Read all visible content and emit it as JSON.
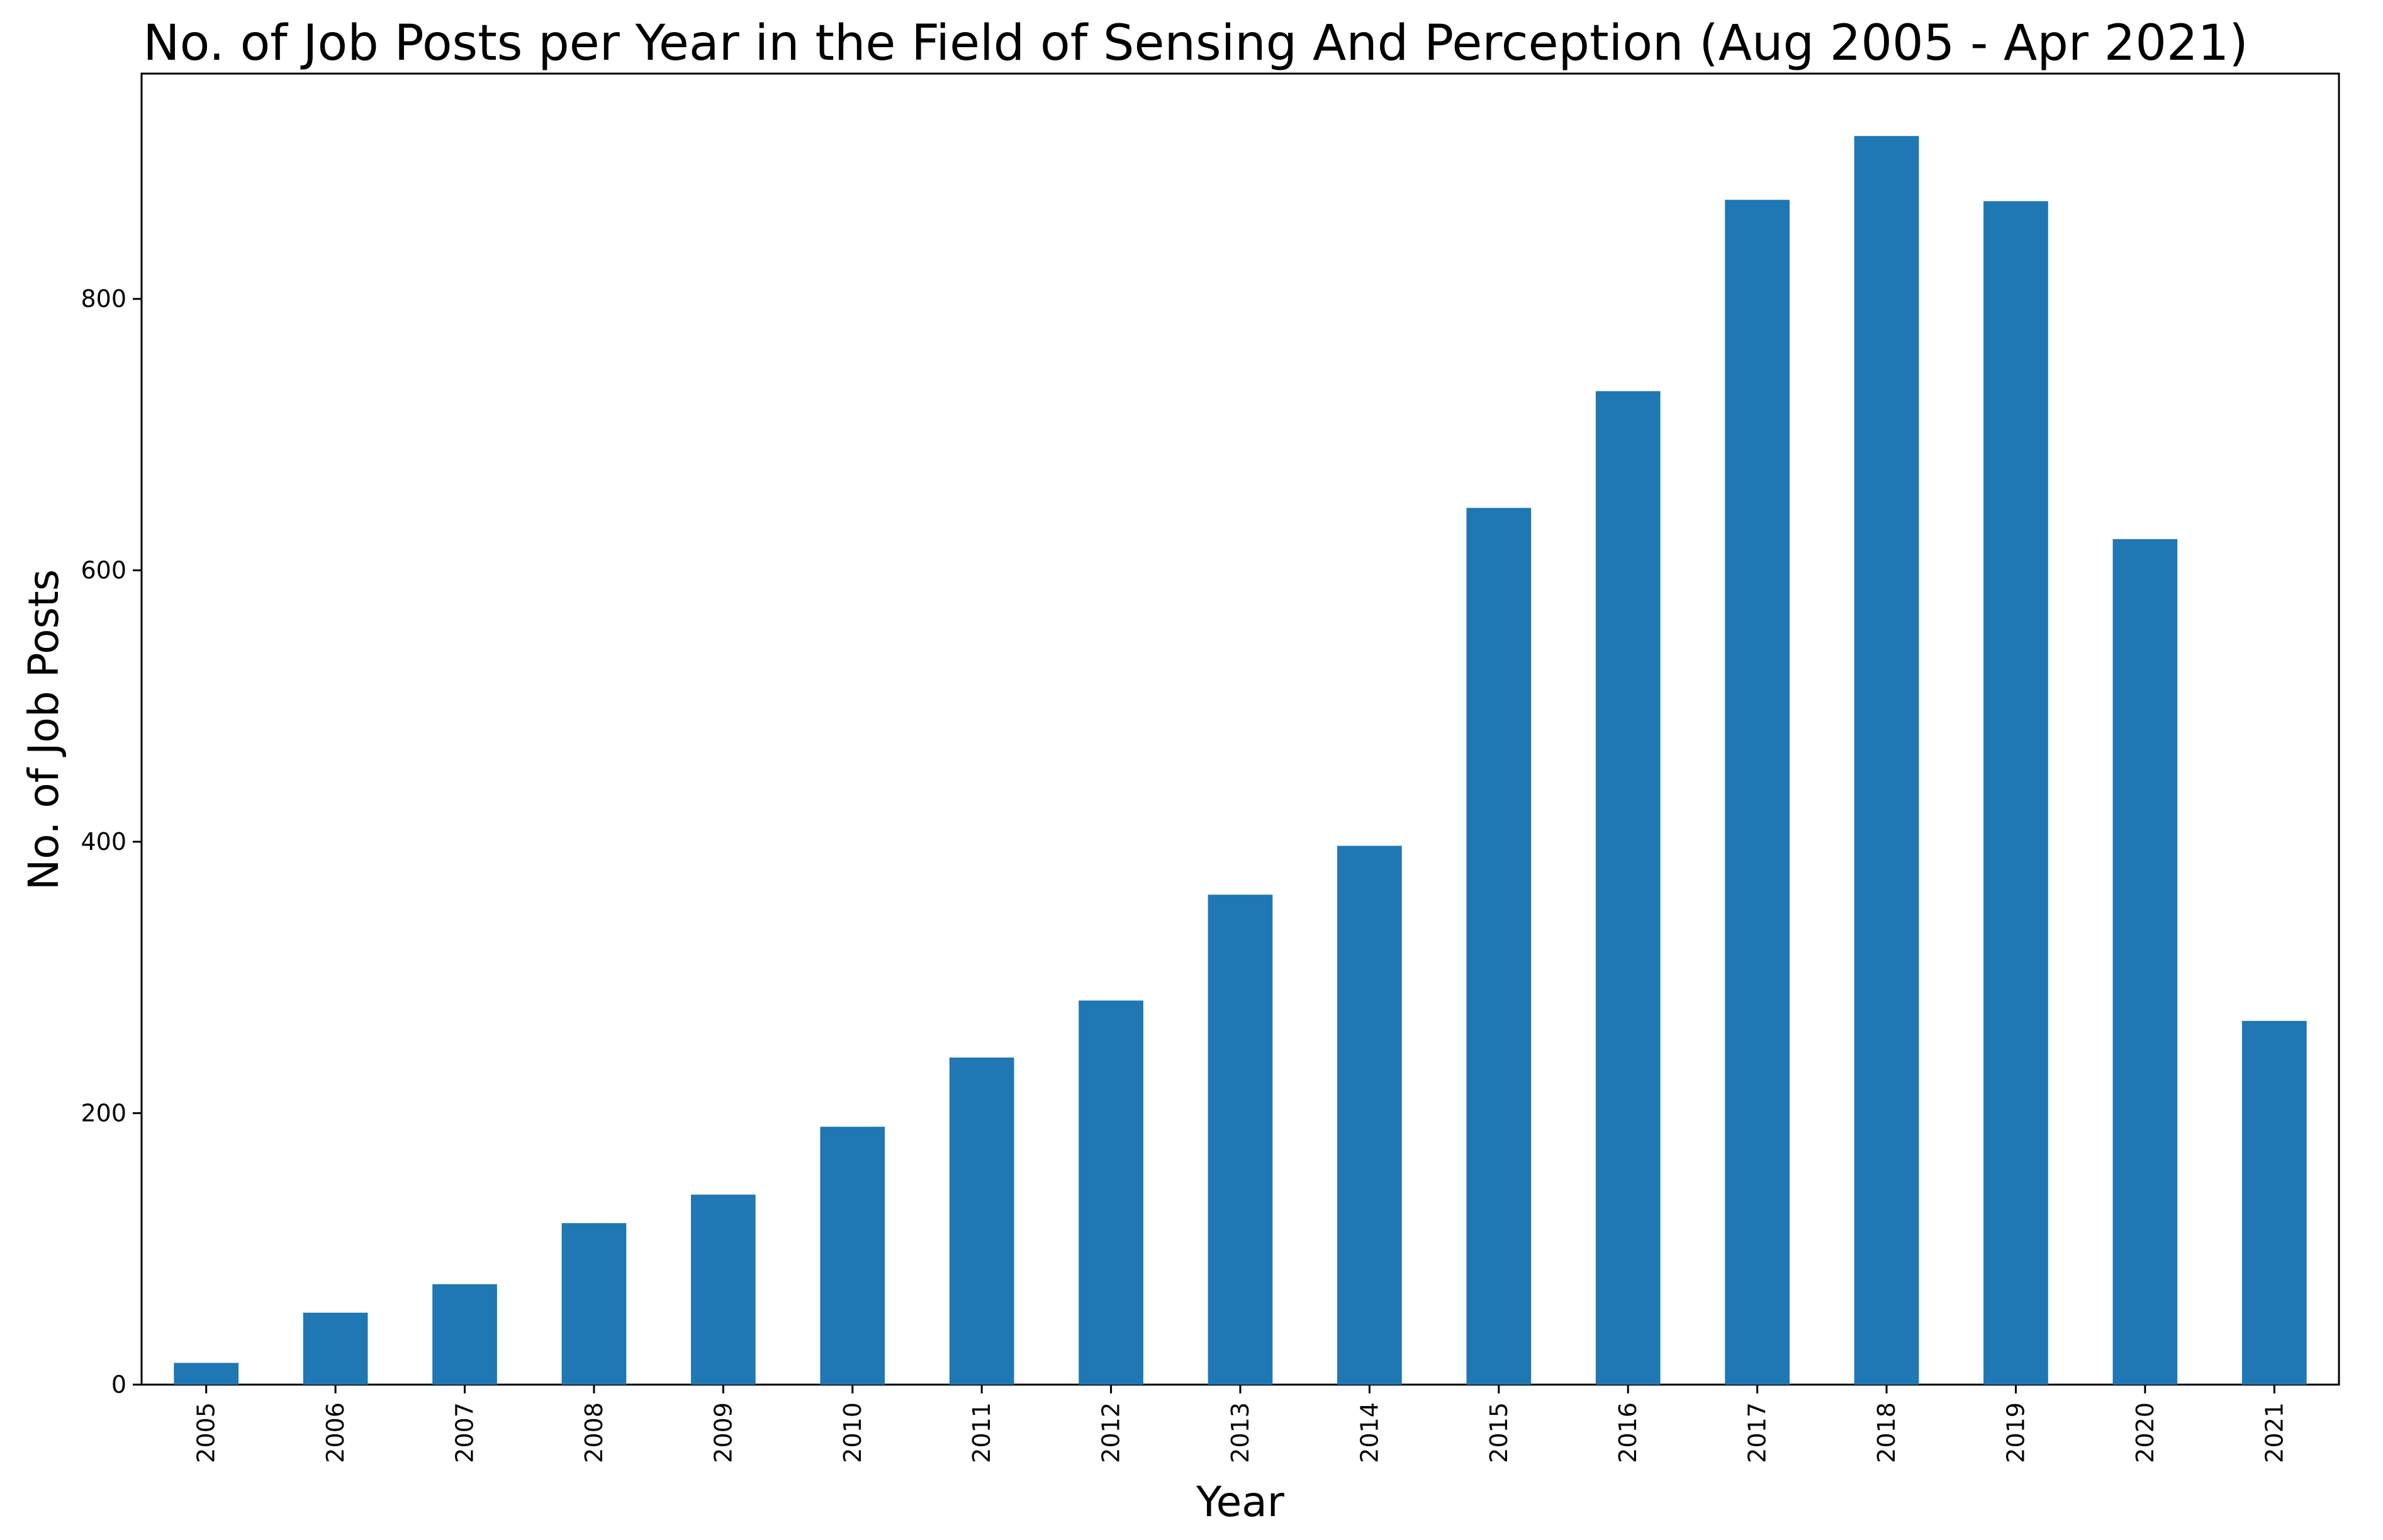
{
  "chart_data": {
    "type": "bar",
    "title": "No. of Job Posts per Year in the Field of Sensing And Perception (Aug 2005 - Apr 2021)",
    "xlabel": "Year",
    "ylabel": "No. of Job Posts",
    "categories": [
      "2005",
      "2006",
      "2007",
      "2008",
      "2009",
      "2010",
      "2011",
      "2012",
      "2013",
      "2014",
      "2015",
      "2016",
      "2017",
      "2018",
      "2019",
      "2020",
      "2021"
    ],
    "values": [
      16,
      53,
      74,
      119,
      140,
      190,
      241,
      283,
      361,
      397,
      646,
      732,
      873,
      920,
      872,
      623,
      268
    ],
    "ylim": [
      0,
      966
    ],
    "yticks": [
      0,
      200,
      400,
      600,
      800
    ],
    "ytick_labels": [
      "0",
      "200",
      "400",
      "600",
      "800"
    ],
    "grid": false,
    "legend": "none",
    "bar_color": "#1f77b4"
  }
}
